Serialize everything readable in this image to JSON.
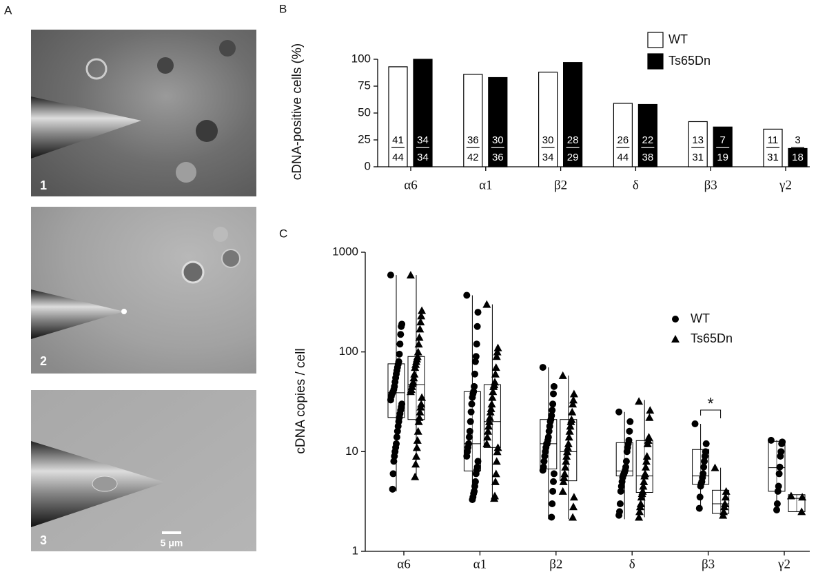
{
  "panel_labels": [
    "A",
    "B",
    "C"
  ],
  "images": [
    {
      "label": "1"
    },
    {
      "label": "2"
    },
    {
      "label": "3",
      "scale_bar": "5 μm"
    }
  ],
  "chart_data": [
    {
      "type": "bar",
      "ylabel": "cDNA-positive cells (%)",
      "categories": [
        "α6",
        "α1",
        "β2",
        "δ",
        "β3",
        "γ2"
      ],
      "series": [
        {
          "name": "WT",
          "color": "#ffffff",
          "values": [
            93,
            86,
            88,
            59,
            42,
            35
          ],
          "positive": [
            41,
            36,
            30,
            26,
            13,
            11
          ],
          "total": [
            44,
            42,
            34,
            44,
            31,
            31
          ]
        },
        {
          "name": "Ts65Dn",
          "color": "#000000",
          "values": [
            100,
            83,
            97,
            58,
            37,
            17
          ],
          "positive": [
            34,
            30,
            28,
            22,
            7,
            3
          ],
          "total": [
            34,
            36,
            29,
            38,
            19,
            18
          ]
        }
      ],
      "ylim": [
        0,
        100
      ],
      "yticks": [
        0,
        25,
        50,
        75,
        100
      ],
      "legend": "top-right"
    },
    {
      "type": "box",
      "ylabel": "cDNA copies / cell",
      "log": true,
      "categories": [
        "α6",
        "α1",
        "β2",
        "δ",
        "β3",
        "γ2"
      ],
      "series": [
        {
          "name": "WT",
          "marker": "circle",
          "color": "#000000",
          "low": [
            4,
            3.3,
            2.1,
            2.1,
            2.7,
            2.6
          ],
          "q1": [
            22,
            6.4,
            6.7,
            5.7,
            4.7,
            4
          ],
          "median": [
            39,
            12,
            12,
            6.4,
            5.7,
            6.9
          ],
          "q3": [
            76,
            40,
            21,
            12.3,
            10.5,
            12.7
          ],
          "high": [
            590,
            370,
            70,
            25,
            19,
            13
          ],
          "points": [
            [
              590,
              190,
              180,
              150,
              120,
              95,
              80,
              75,
              70,
              65,
              60,
              55,
              50,
              45,
              42,
              40,
              39,
              38,
              36,
              33,
              30,
              28,
              26,
              24,
              22,
              20,
              18,
              16,
              14,
              12,
              11,
              10,
              9,
              8,
              6,
              4.2
            ],
            [
              370,
              250,
              180,
              120,
              90,
              80,
              60,
              45,
              40,
              38,
              35,
              30,
              25,
              20,
              16,
              14,
              12,
              11,
              10,
              9,
              8,
              7,
              6.5,
              6,
              5,
              4.5,
              4,
              3.8,
              3.5,
              3.3
            ],
            [
              70,
              45,
              38,
              30,
              26,
              23,
              21,
              20,
              18,
              16,
              14,
              13,
              12,
              12,
              11,
              10,
              9,
              8,
              7,
              6.5,
              6,
              5,
              4,
              3,
              2.2
            ],
            [
              25,
              20,
              16,
              13,
              12,
              11,
              10,
              8,
              7,
              6.5,
              6.2,
              6,
              5.8,
              5.5,
              5,
              4.5,
              4,
              3,
              2.5,
              2.3
            ],
            [
              19,
              12,
              10,
              9,
              8,
              7,
              6,
              5.5,
              5,
              4.8,
              4.5,
              3.5,
              2.7
            ],
            [
              13,
              12.5,
              12,
              10,
              9,
              7,
              6,
              4.5,
              4,
              3,
              2.6
            ]
          ]
        },
        {
          "name": "Ts65Dn",
          "marker": "triangle",
          "color": "#000000",
          "low": [
            5.6,
            3.2,
            2.1,
            2.2,
            2.3,
            2.5
          ],
          "q1": [
            21,
            11,
            5.1,
            3.9,
            2.4,
            2.5
          ],
          "median": [
            47,
            20,
            10,
            5.7,
            3,
            3.4
          ],
          "q3": [
            90,
            47,
            21,
            12.9,
            4.1,
            3.7
          ],
          "high": [
            590,
            300,
            58,
            33,
            6.9,
            3.7
          ],
          "points": [
            [
              590,
              260,
              230,
              200,
              170,
              140,
              120,
              100,
              90,
              85,
              80,
              75,
              70,
              60,
              55,
              50,
              48,
              45,
              42,
              40,
              35,
              30,
              28,
              25,
              22,
              20,
              16,
              13,
              11,
              9,
              7.5,
              5.6
            ],
            [
              300,
              110,
              100,
              90,
              70,
              60,
              50,
              47,
              45,
              40,
              35,
              30,
              27,
              25,
              22,
              20,
              18,
              16,
              14,
              12,
              11,
              10,
              8,
              6,
              5,
              3.6,
              3.4
            ],
            [
              58,
              38,
              33,
              30,
              25,
              21,
              20,
              18,
              16,
              14,
              12,
              11,
              10,
              9,
              8,
              7,
              6,
              5.5,
              5,
              4,
              3.5,
              2.8,
              2.2
            ],
            [
              32,
              26,
              22,
              14,
              13,
              12,
              9,
              8,
              7,
              6,
              5.7,
              5,
              4.5,
              4,
              3.8,
              3.5,
              3,
              2.8,
              2.5,
              2.2
            ],
            [
              6.9,
              4,
              3.5,
              3,
              2.8,
              2.5,
              2.3
            ],
            [
              3.6,
              3.5,
              2.5
            ]
          ]
        }
      ],
      "ylim": [
        1,
        1000
      ],
      "yticks": [
        1,
        10,
        100,
        1000
      ],
      "legend": "top-right",
      "annotations": [
        {
          "text": "*"
        }
      ]
    }
  ]
}
